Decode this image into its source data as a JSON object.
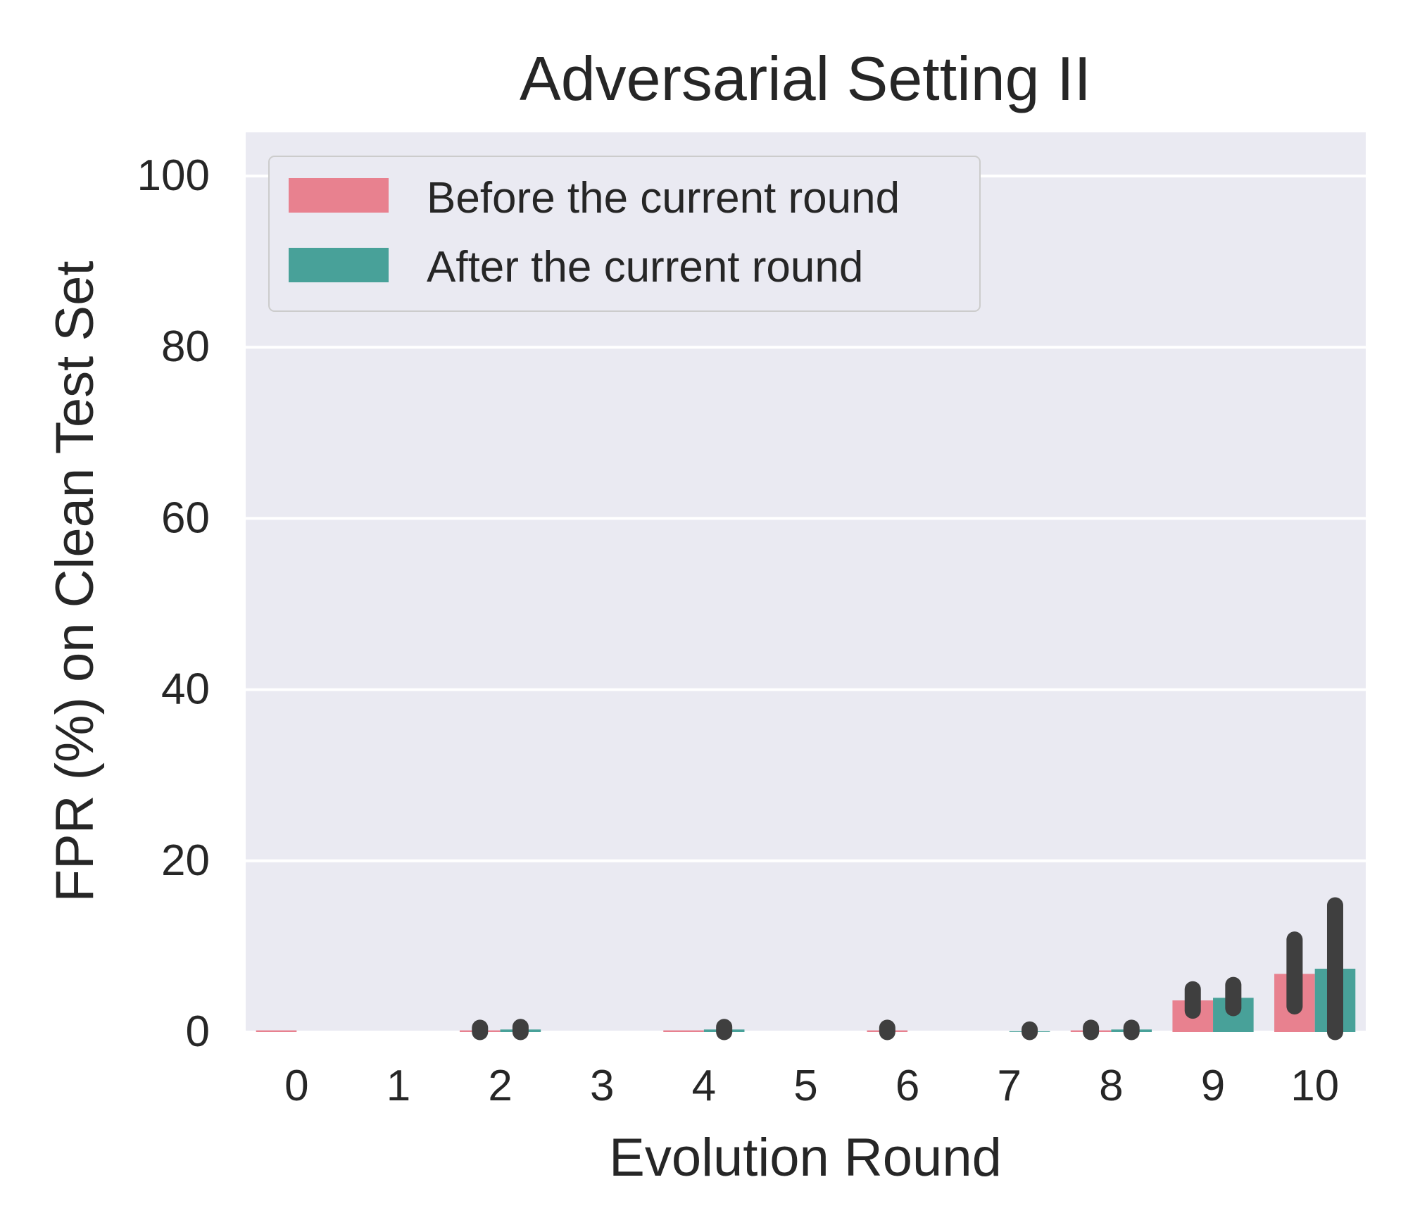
{
  "chart_data": {
    "type": "bar",
    "title": "Adversarial Setting II",
    "xlabel": "Evolution Round",
    "ylabel": "FPR (%) on Clean Test Set",
    "categories": [
      "0",
      "1",
      "2",
      "3",
      "4",
      "5",
      "6",
      "7",
      "8",
      "9",
      "10"
    ],
    "ylim": [
      0,
      105
    ],
    "yticks": [
      "0",
      "20",
      "40",
      "60",
      "80",
      "100"
    ],
    "grid": true,
    "legend_position": "top-left",
    "series": [
      {
        "name": "Before the current round",
        "color": "#e8818f",
        "values": [
          0.2,
          0,
          0.2,
          0,
          0.2,
          0,
          0.2,
          0,
          0.2,
          3.7,
          6.8
        ],
        "ci_low": [
          null,
          null,
          0,
          null,
          null,
          null,
          0,
          null,
          0,
          2.5,
          3.0
        ],
        "ci_high": [
          null,
          null,
          0.5,
          null,
          null,
          null,
          0.5,
          null,
          0.5,
          5.0,
          10.8
        ]
      },
      {
        "name": "After the current round",
        "color": "#48a199",
        "values": [
          0,
          0,
          0.3,
          0,
          0.3,
          0,
          0,
          0.1,
          0.3,
          4.0,
          7.4
        ],
        "ci_low": [
          null,
          null,
          0,
          null,
          0,
          null,
          null,
          0,
          0,
          2.8,
          0
        ],
        "ci_high": [
          null,
          null,
          0.6,
          null,
          0.6,
          null,
          null,
          0.3,
          0.5,
          5.5,
          14.8
        ]
      }
    ]
  }
}
